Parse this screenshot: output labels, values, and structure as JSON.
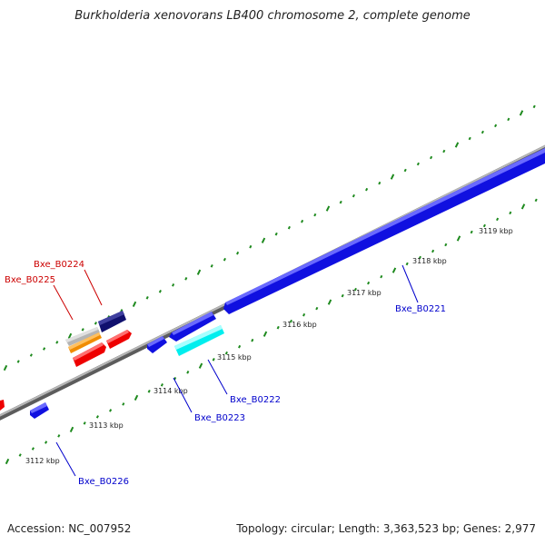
{
  "title": "Burkholderia xenovorans LB400 chromosome 2, complete genome",
  "footer": {
    "accession": "Accession: NC_007952",
    "topology": "Topology: circular; Length: 3,363,523 bp; Genes: 2,977"
  },
  "scale_labels": [
    "3112 kbp",
    "3113 kbp",
    "3114 kbp",
    "3115 kbp",
    "3116 kbp",
    "3117 kbp",
    "3118 kbp",
    "3119 kbp"
  ],
  "gene_labels": [
    {
      "name": "Bxe_B0224",
      "color": "#cc0000"
    },
    {
      "name": "Bxe_B0225",
      "color": "#cc0000"
    },
    {
      "name": "Bxe_B0221",
      "color": "#0000cc"
    },
    {
      "name": "Bxe_B0222",
      "color": "#0000cc"
    },
    {
      "name": "Bxe_B0223",
      "color": "#0000cc"
    },
    {
      "name": "Bxe_B0226",
      "color": "#0000cc"
    }
  ],
  "colors": {
    "backbone": "#888888",
    "tick": "#1e8a1e",
    "blue_gene": "#1010e0",
    "navy_gene": "#10106e",
    "red_gene": "#ee0000",
    "orange_gene": "#f08c00",
    "cyan_gene": "#00eeee",
    "grey_gene": "#b4b4b4"
  }
}
